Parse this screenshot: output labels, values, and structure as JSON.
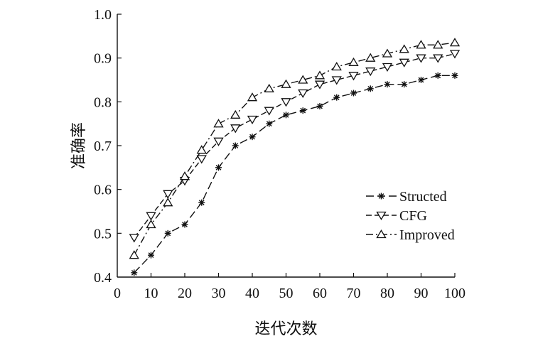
{
  "chart_data": {
    "type": "line",
    "title": "",
    "xlabel": "迭代次数",
    "ylabel": "准确率",
    "xlim": [
      0,
      100
    ],
    "ylim": [
      0.4,
      1.0
    ],
    "x_ticks": [
      "0",
      "10",
      "20",
      "30",
      "40",
      "50",
      "60",
      "70",
      "80",
      "90",
      "100"
    ],
    "y_ticks": [
      "0.4",
      "0.5",
      "0.6",
      "0.7",
      "0.8",
      "0.9",
      "1.0"
    ],
    "grid": false,
    "legend_position": "lower-right",
    "x": [
      5,
      10,
      15,
      20,
      25,
      30,
      35,
      40,
      45,
      50,
      55,
      60,
      65,
      70,
      75,
      80,
      85,
      90,
      95,
      100
    ],
    "series": [
      {
        "name": "Structed",
        "marker": "asterisk",
        "line_style": "long-dash",
        "values": [
          0.41,
          0.45,
          0.5,
          0.52,
          0.57,
          0.65,
          0.7,
          0.72,
          0.75,
          0.77,
          0.78,
          0.79,
          0.81,
          0.82,
          0.83,
          0.84,
          0.84,
          0.85,
          0.86,
          0.86
        ]
      },
      {
        "name": "CFG",
        "marker": "triangle-down",
        "line_style": "dash",
        "values": [
          0.49,
          0.54,
          0.59,
          0.62,
          0.67,
          0.71,
          0.74,
          0.76,
          0.78,
          0.8,
          0.82,
          0.84,
          0.85,
          0.86,
          0.87,
          0.88,
          0.89,
          0.9,
          0.9,
          0.91
        ]
      },
      {
        "name": "Improved",
        "marker": "triangle-up",
        "line_style": "dash-dot",
        "values": [
          0.45,
          0.52,
          0.57,
          0.63,
          0.69,
          0.75,
          0.77,
          0.81,
          0.83,
          0.84,
          0.85,
          0.86,
          0.88,
          0.89,
          0.9,
          0.91,
          0.92,
          0.93,
          0.93,
          0.935
        ]
      }
    ]
  }
}
